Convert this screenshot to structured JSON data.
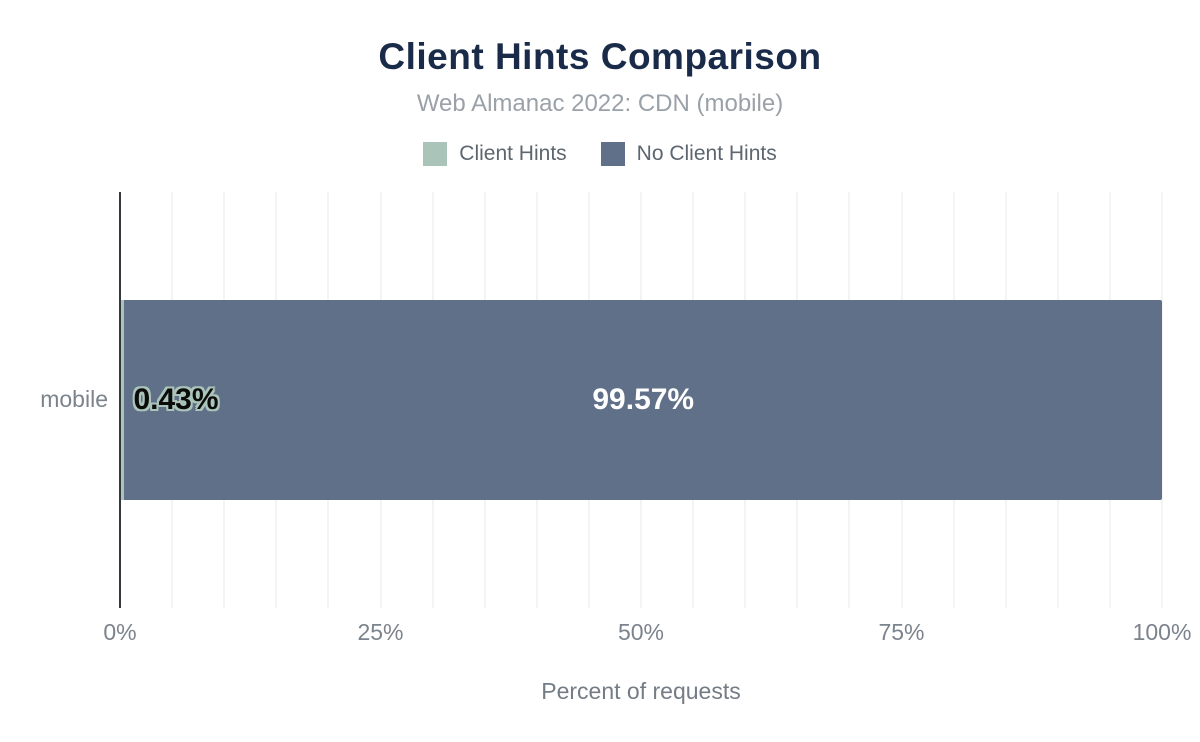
{
  "title": "Client Hints Comparison",
  "subtitle": "Web Almanac 2022: CDN (mobile)",
  "legend": {
    "items": [
      {
        "label": "Client Hints",
        "color": "#abc4ba"
      },
      {
        "label": "No Client Hints",
        "color": "#5f7088"
      }
    ]
  },
  "colors": {
    "title": "#1a2b49",
    "subtitle": "#9aa1a8",
    "axis_text": "#7b838c",
    "axis_line": "#35383c",
    "gridline": "#f4f4f4",
    "background": "#ffffff"
  },
  "chart_data": {
    "type": "bar",
    "orientation": "horizontal",
    "stacked": true,
    "title": "Client Hints Comparison",
    "subtitle": "Web Almanac 2022: CDN (mobile)",
    "categories": [
      "mobile"
    ],
    "series": [
      {
        "name": "Client Hints",
        "values": [
          0.43
        ],
        "color": "#abc4ba"
      },
      {
        "name": "No Client Hints",
        "values": [
          99.57
        ],
        "color": "#5f7088"
      }
    ],
    "data_labels": [
      "0.43%",
      "99.57%"
    ],
    "xlabel": "Percent of requests",
    "ylabel": "",
    "xlim": [
      0,
      100
    ],
    "x_ticks": [
      "0%",
      "25%",
      "50%",
      "75%",
      "100%"
    ],
    "x_tick_values": [
      0,
      25,
      50,
      75,
      100
    ],
    "grid": "vertical minor gridlines every 5%",
    "legend_position": "top-center"
  }
}
